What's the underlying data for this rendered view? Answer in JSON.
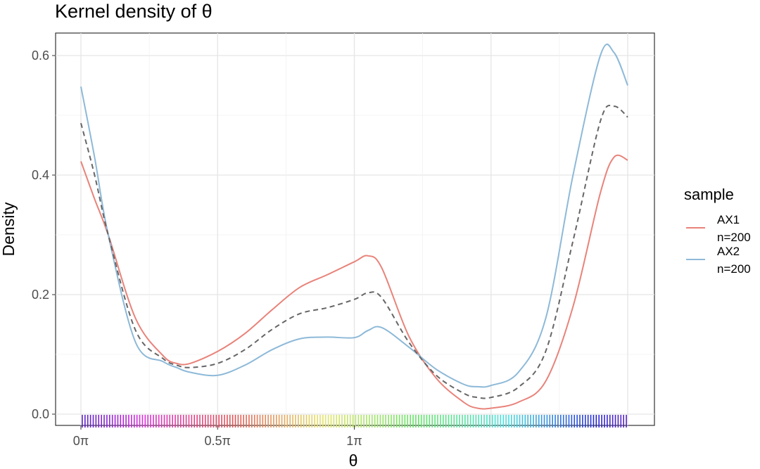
{
  "chart_data": {
    "type": "line",
    "title": "Kernel density of θ",
    "xlabel": "θ",
    "ylabel": "Density",
    "xlim": [
      0,
      2
    ],
    "ylim": [
      0,
      0.6
    ],
    "x_ticks": [
      {
        "value": 0,
        "label": "0π"
      },
      {
        "value": 0.5,
        "label": "0.5π"
      },
      {
        "value": 1,
        "label": "1π"
      }
    ],
    "y_ticks": [
      {
        "value": 0,
        "label": "0.0"
      },
      {
        "value": 0.2,
        "label": "0.2"
      },
      {
        "value": 0.4,
        "label": "0.4"
      },
      {
        "value": 0.6,
        "label": "0.6"
      }
    ],
    "grid": true,
    "legend": {
      "title": "sample",
      "position": "right",
      "entries": [
        {
          "label_line1": "AX1",
          "label_line2": "n=200",
          "color": "#e8837a"
        },
        {
          "label_line1": "AX2",
          "label_line2": "n=200",
          "color": "#8db9d8"
        }
      ]
    },
    "x_unit": "π",
    "series": [
      {
        "name": "AX1 n=200",
        "color": "#e8837a",
        "style": "solid",
        "x": [
          0,
          0.05,
          0.1,
          0.2,
          0.3,
          0.35,
          0.4,
          0.5,
          0.6,
          0.7,
          0.8,
          0.9,
          1.0,
          1.05,
          1.1,
          1.2,
          1.3,
          1.4,
          1.45,
          1.5,
          1.6,
          1.7,
          1.8,
          1.9,
          1.95,
          2.0
        ],
        "values": [
          0.423,
          0.36,
          0.3,
          0.16,
          0.098,
          0.085,
          0.085,
          0.105,
          0.135,
          0.175,
          0.212,
          0.233,
          0.255,
          0.265,
          0.245,
          0.13,
          0.06,
          0.02,
          0.01,
          0.01,
          0.02,
          0.055,
          0.18,
          0.37,
          0.43,
          0.425
        ]
      },
      {
        "name": "AX2 n=200",
        "color": "#8db9d8",
        "style": "solid",
        "x": [
          0,
          0.05,
          0.1,
          0.2,
          0.3,
          0.35,
          0.4,
          0.5,
          0.6,
          0.7,
          0.8,
          0.9,
          1.0,
          1.05,
          1.1,
          1.2,
          1.3,
          1.4,
          1.45,
          1.5,
          1.6,
          1.7,
          1.8,
          1.9,
          1.95,
          2.0
        ],
        "values": [
          0.548,
          0.43,
          0.3,
          0.12,
          0.088,
          0.078,
          0.07,
          0.065,
          0.082,
          0.108,
          0.126,
          0.129,
          0.128,
          0.14,
          0.145,
          0.112,
          0.075,
          0.05,
          0.046,
          0.048,
          0.07,
          0.16,
          0.4,
          0.6,
          0.605,
          0.55
        ]
      },
      {
        "name": "combined",
        "color": "#666666",
        "style": "dashed",
        "x": [
          0,
          0.05,
          0.1,
          0.2,
          0.3,
          0.35,
          0.4,
          0.5,
          0.6,
          0.7,
          0.8,
          0.9,
          1.0,
          1.05,
          1.1,
          1.2,
          1.3,
          1.4,
          1.45,
          1.5,
          1.6,
          1.7,
          1.8,
          1.9,
          1.95,
          2.0
        ],
        "values": [
          0.487,
          0.4,
          0.3,
          0.14,
          0.093,
          0.082,
          0.078,
          0.085,
          0.108,
          0.142,
          0.168,
          0.178,
          0.192,
          0.203,
          0.195,
          0.12,
          0.065,
          0.035,
          0.028,
          0.028,
          0.045,
          0.105,
          0.29,
          0.49,
          0.515,
          0.497
        ]
      }
    ],
    "rug": {
      "count": 200,
      "x_range": [
        0,
        2
      ]
    }
  }
}
